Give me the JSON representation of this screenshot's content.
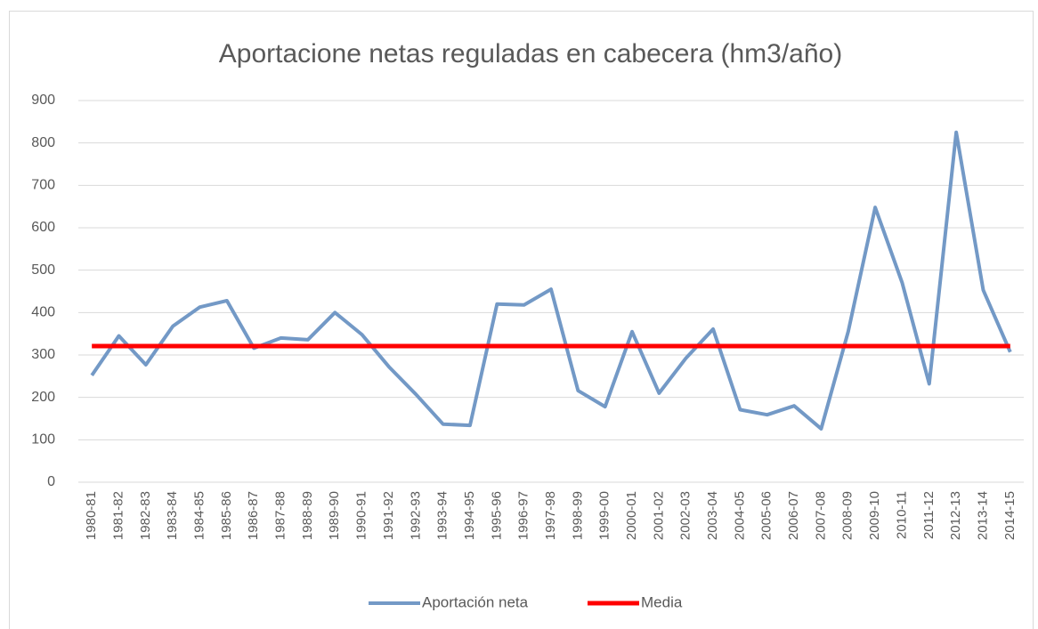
{
  "chart_data": {
    "type": "line",
    "title": "Aportacione netas reguladas en cabecera (hm3/año)",
    "categories": [
      "1980-81",
      "1981-82",
      "1982-83",
      "1983-84",
      "1984-85",
      "1985-86",
      "1986-87",
      "1987-88",
      "1988-89",
      "1989-90",
      "1990-91",
      "1991-92",
      "1992-93",
      "1993-94",
      "1994-95",
      "1995-96",
      "1996-97",
      "1997-98",
      "1998-99",
      "1999-00",
      "2000-01",
      "2001-02",
      "2002-03",
      "2003-04",
      "2004-05",
      "2005-06",
      "2006-07",
      "2007-08",
      "2008-09",
      "2009-10",
      "2010-11",
      "2011-12",
      "2012-13",
      "2013-14",
      "2014-15"
    ],
    "series": [
      {
        "name": "Aportación neta",
        "color": "#7399c6",
        "values": [
          252,
          345,
          277,
          368,
          413,
          428,
          316,
          340,
          336,
          400,
          348,
          272,
          207,
          137,
          134,
          420,
          418,
          455,
          216,
          178,
          355,
          210,
          293,
          361,
          171,
          159,
          180,
          126,
          355,
          648,
          470,
          232,
          825,
          453,
          307
        ]
      },
      {
        "name": "Media",
        "color": "#ff0000",
        "values": [
          321,
          321,
          321,
          321,
          321,
          321,
          321,
          321,
          321,
          321,
          321,
          321,
          321,
          321,
          321,
          321,
          321,
          321,
          321,
          321,
          321,
          321,
          321,
          321,
          321,
          321,
          321,
          321,
          321,
          321,
          321,
          321,
          321,
          321,
          321
        ]
      }
    ],
    "ylim": [
      0,
      900
    ],
    "yticks": [
      0,
      100,
      200,
      300,
      400,
      500,
      600,
      700,
      800,
      900
    ],
    "grid": true,
    "legend": "bottom"
  }
}
